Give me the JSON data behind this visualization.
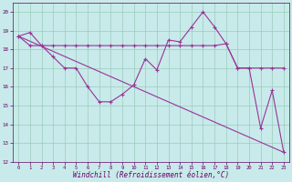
{
  "xlabel": "Windchill (Refroidissement éolien,°C)",
  "xlim": [
    -0.5,
    23.5
  ],
  "ylim": [
    12,
    20.5
  ],
  "yticks": [
    12,
    13,
    14,
    15,
    16,
    17,
    18,
    19,
    20
  ],
  "xticks": [
    0,
    1,
    2,
    3,
    4,
    5,
    6,
    7,
    8,
    9,
    10,
    11,
    12,
    13,
    14,
    15,
    16,
    17,
    18,
    19,
    20,
    21,
    22,
    23
  ],
  "background_color": "#c8eaea",
  "line_color": "#993399",
  "grid_color": "#99ccbb",
  "line1_x": [
    0,
    1,
    2,
    3,
    4,
    5,
    6,
    7,
    8,
    9,
    10,
    11,
    12,
    13,
    14,
    15,
    16,
    17,
    18,
    19,
    20,
    21,
    22,
    23
  ],
  "line1_y": [
    18.7,
    18.9,
    18.2,
    17.6,
    17.0,
    17.0,
    16.0,
    15.2,
    15.2,
    15.6,
    16.1,
    17.5,
    16.9,
    18.5,
    18.4,
    19.2,
    20.0,
    19.2,
    18.3,
    17.0,
    17.0,
    13.8,
    15.8,
    12.5
  ],
  "line2_x": [
    0,
    1,
    2,
    3,
    4,
    5,
    6,
    7,
    8,
    9,
    10,
    11,
    12,
    13,
    14,
    15,
    16,
    17,
    18,
    19,
    20,
    21,
    22,
    23
  ],
  "line2_y": [
    18.7,
    18.2,
    18.2,
    18.2,
    18.2,
    18.2,
    18.2,
    18.2,
    18.2,
    18.2,
    18.2,
    18.2,
    18.2,
    18.2,
    18.2,
    18.2,
    18.2,
    18.2,
    18.3,
    17.0,
    17.0,
    17.0,
    17.0,
    17.0
  ],
  "line3_x": [
    0,
    23
  ],
  "line3_y": [
    18.7,
    12.5
  ]
}
